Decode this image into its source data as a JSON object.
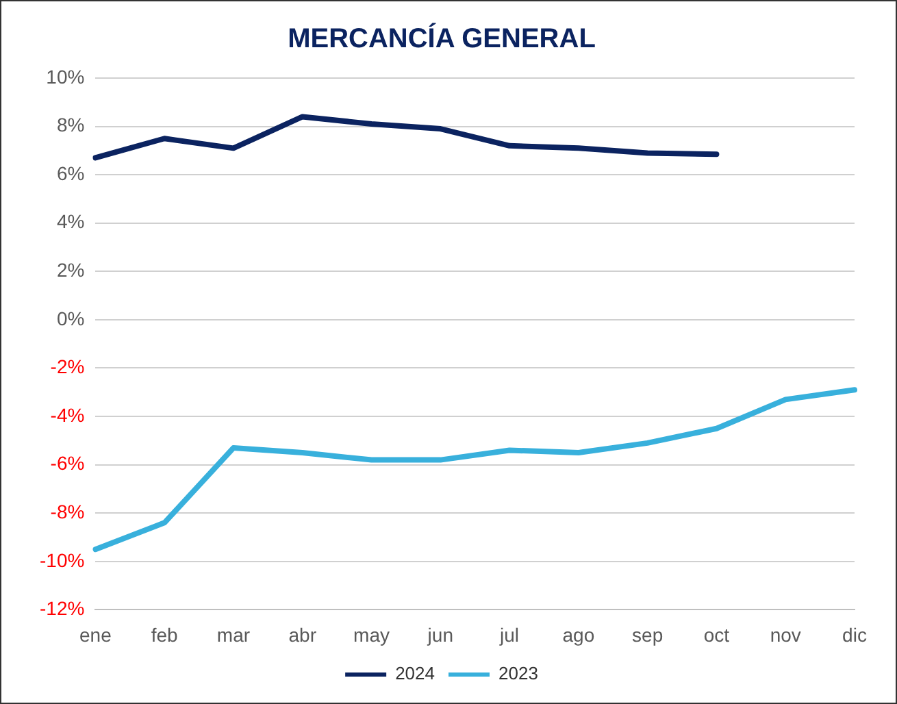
{
  "chart_data": {
    "type": "line",
    "title": "MERCANCÍA GENERAL",
    "categories": [
      "ene",
      "feb",
      "mar",
      "abr",
      "may",
      "jun",
      "jul",
      "ago",
      "sep",
      "oct",
      "nov",
      "dic"
    ],
    "series": [
      {
        "name": "2024",
        "color": "#0b2360",
        "values": [
          6.7,
          7.5,
          7.1,
          8.4,
          8.1,
          7.9,
          7.2,
          7.1,
          6.9,
          6.85,
          null,
          null
        ]
      },
      {
        "name": "2023",
        "color": "#38b0dc",
        "values": [
          -9.5,
          -8.4,
          -5.3,
          -5.5,
          -5.8,
          -5.8,
          -5.4,
          -5.5,
          -5.1,
          -4.5,
          -3.3,
          -2.9
        ]
      }
    ],
    "ylim": [
      -12,
      10
    ],
    "yticks": [
      {
        "value": -12,
        "label": "-12%"
      },
      {
        "value": -10,
        "label": "-10%"
      },
      {
        "value": -8,
        "label": "-8%"
      },
      {
        "value": -6,
        "label": "-6%"
      },
      {
        "value": -4,
        "label": "-4%"
      },
      {
        "value": -2,
        "label": "-2%"
      },
      {
        "value": 0,
        "label": "0%"
      },
      {
        "value": 2,
        "label": "2%"
      },
      {
        "value": 4,
        "label": "4%"
      },
      {
        "value": 6,
        "label": "6%"
      },
      {
        "value": 8,
        "label": "8%"
      },
      {
        "value": 10,
        "label": "10%"
      }
    ],
    "grid": "y",
    "legend": "bottom",
    "marker": "none",
    "line_style": "solid"
  }
}
